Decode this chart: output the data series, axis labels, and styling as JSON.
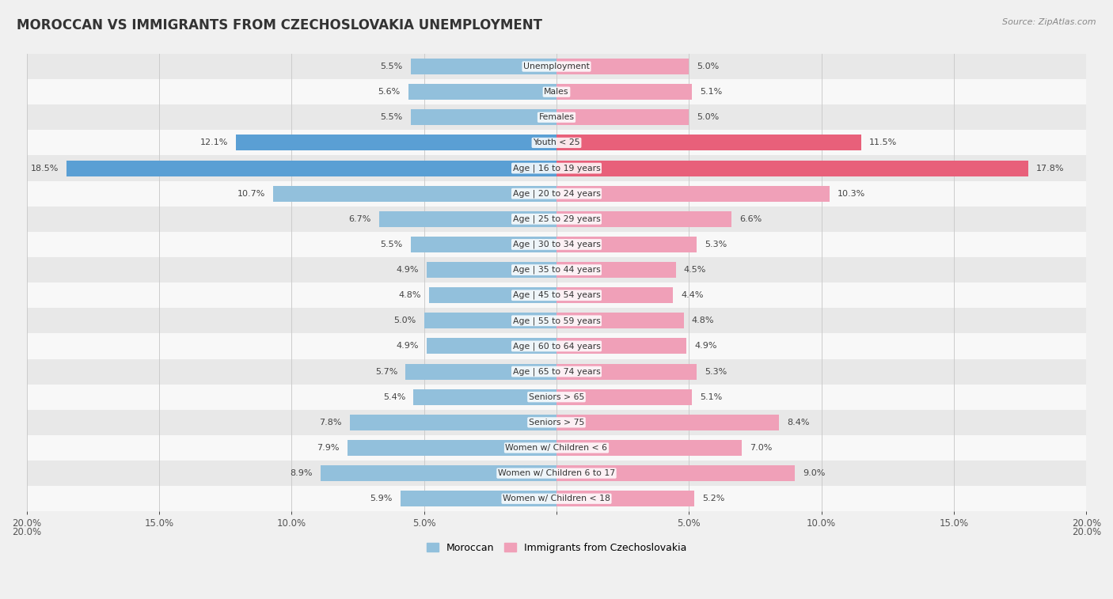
{
  "title": "MOROCCAN VS IMMIGRANTS FROM CZECHOSLOVAKIA UNEMPLOYMENT",
  "source": "Source: ZipAtlas.com",
  "categories": [
    "Unemployment",
    "Males",
    "Females",
    "Youth < 25",
    "Age | 16 to 19 years",
    "Age | 20 to 24 years",
    "Age | 25 to 29 years",
    "Age | 30 to 34 years",
    "Age | 35 to 44 years",
    "Age | 45 to 54 years",
    "Age | 55 to 59 years",
    "Age | 60 to 64 years",
    "Age | 65 to 74 years",
    "Seniors > 65",
    "Seniors > 75",
    "Women w/ Children < 6",
    "Women w/ Children 6 to 17",
    "Women w/ Children < 18"
  ],
  "moroccan": [
    5.5,
    5.6,
    5.5,
    12.1,
    18.5,
    10.7,
    6.7,
    5.5,
    4.9,
    4.8,
    5.0,
    4.9,
    5.7,
    5.4,
    7.8,
    7.9,
    8.9,
    5.9
  ],
  "czech": [
    5.0,
    5.1,
    5.0,
    11.5,
    17.8,
    10.3,
    6.6,
    5.3,
    4.5,
    4.4,
    4.8,
    4.9,
    5.3,
    5.1,
    8.4,
    7.0,
    9.0,
    5.2
  ],
  "moroccan_color": "#92c0dc",
  "czech_color": "#f0a0b8",
  "moroccan_highlight": "#5a9fd4",
  "czech_highlight": "#e8607a",
  "axis_max": 20.0,
  "background_color": "#f0f0f0",
  "row_bg_odd": "#e8e8e8",
  "row_bg_even": "#f8f8f8",
  "highlight_rows": [
    3,
    4
  ],
  "xtick_positions": [
    -20,
    -15,
    -10,
    -5,
    0,
    5,
    10,
    15,
    20
  ],
  "xtick_labels": [
    "20.0%",
    "15.0%",
    "10.0%",
    "5.0%",
    "",
    "5.0%",
    "10.0%",
    "15.0%",
    "20.0%"
  ],
  "xlabel_far_left": "20.0%",
  "xlabel_far_right": "20.0%"
}
